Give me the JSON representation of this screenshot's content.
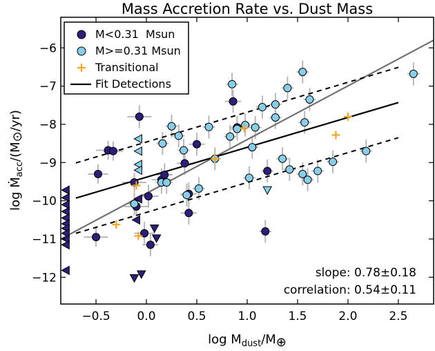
{
  "chart_data": {
    "type": "scatter",
    "title": "Mass Accretion Rate vs. Dust Mass",
    "xlabel": "log M",
    "xlabel_sub": "dust",
    "xlabel_tail": "/M",
    "xlabel_symbol": "⊕",
    "ylabel": "log Ṁ",
    "ylabel_sub": "acc",
    "ylabel_tail": "/(M",
    "ylabel_symbol": "⊙",
    "ylabel_end": "/yr)",
    "xlim": [
      -0.85,
      2.85
    ],
    "ylim": [
      -12.7,
      -5.2
    ],
    "xticks": [
      -0.5,
      0.0,
      0.5,
      1.0,
      1.5,
      2.0,
      2.5
    ],
    "xtick_labels": [
      "−0.5",
      "0.0",
      "0.5",
      "1.0",
      "1.5",
      "2.0",
      "2.5"
    ],
    "yticks": [
      -12,
      -11,
      -10,
      -9,
      -8,
      -7,
      -6
    ],
    "ytick_labels": [
      "−12",
      "−11",
      "−10",
      "−9",
      "−8",
      "−7",
      "−6"
    ],
    "legend": {
      "position": "top-left",
      "entries": [
        {
          "label": "M<0.31  Msun",
          "marker": "circle",
          "color": "#2a1f7a"
        },
        {
          "label": "M>=0.31 Msun",
          "marker": "circle",
          "color": "#87ceeb"
        },
        {
          "label": "Transitional",
          "marker": "plus",
          "color": "#f5a623"
        },
        {
          "label": "Fit Detections",
          "marker": "line",
          "color": "#000000"
        }
      ]
    },
    "annotations": [
      {
        "text": "slope: 0.78±0.18"
      },
      {
        "text": "correlation: 0.54±0.11"
      }
    ],
    "colors": {
      "low_mass": "#2a1f7a",
      "high_mass": "#87ceeb",
      "transitional": "#f5a623",
      "fit": "#000000",
      "one_to_one": "#707070",
      "errorbar": "#b8b8b8"
    },
    "fit_line": {
      "x": [
        -0.7,
        2.5
      ],
      "y": [
        -9.93,
        -7.43
      ]
    },
    "fit_upper": {
      "x": [
        -0.7,
        2.5
      ],
      "y": [
        -9.01,
        -6.51
      ]
    },
    "fit_lower": {
      "x": [
        -0.7,
        2.5
      ],
      "y": [
        -10.85,
        -8.35
      ]
    },
    "reference_line": {
      "x": [
        -0.85,
        2.85
      ],
      "y": [
        -11.0,
        -5.8
      ]
    },
    "series": [
      {
        "name": "M<0.31  Msun",
        "marker": "circle",
        "points": [
          [
            -0.5,
            -10.95
          ],
          [
            -0.48,
            -9.3
          ],
          [
            -0.38,
            -8.68
          ],
          [
            -0.33,
            -8.7
          ],
          [
            -0.12,
            -9.52
          ],
          [
            -0.1,
            -10.15
          ],
          [
            -0.07,
            -7.8
          ],
          [
            -0.02,
            -10.85
          ],
          [
            0.02,
            -9.88
          ],
          [
            0.04,
            -11.15
          ],
          [
            0.15,
            -9.45
          ],
          [
            0.18,
            -9.32
          ],
          [
            0.38,
            -9.02
          ],
          [
            0.42,
            -9.82
          ],
          [
            0.42,
            -10.32
          ],
          [
            0.5,
            -8.52
          ],
          [
            0.86,
            -7.4
          ],
          [
            0.9,
            -8.08
          ],
          [
            1.2,
            -9.22
          ],
          [
            1.18,
            -10.8
          ]
        ],
        "xerr": [
          0.12,
          0.1,
          0.12,
          0.1,
          0.12,
          0.12,
          0.12,
          0.1,
          0.1,
          0.08,
          0.1,
          0.08,
          0.08,
          0.08,
          0.08,
          0.08,
          0.08,
          0.08,
          0.06,
          0.06
        ],
        "yerr": [
          0.25,
          0.25,
          0.25,
          0.25,
          0.25,
          0.25,
          0.3,
          0.3,
          0.3,
          0.3,
          0.3,
          0.3,
          0.3,
          0.3,
          0.3,
          0.3,
          0.3,
          0.3,
          0.3,
          0.3
        ]
      },
      {
        "name": "M>=0.31 Msun",
        "marker": "circle",
        "points": [
          [
            -0.12,
            -10.08
          ],
          [
            0.16,
            -8.5
          ],
          [
            0.15,
            -9.52
          ],
          [
            0.2,
            -9.52
          ],
          [
            0.25,
            -8.05
          ],
          [
            0.32,
            -8.3
          ],
          [
            0.37,
            -8.68
          ],
          [
            0.4,
            -9.85
          ],
          [
            0.52,
            -9.68
          ],
          [
            0.62,
            -8.07
          ],
          [
            0.68,
            -8.9
          ],
          [
            0.85,
            -6.95
          ],
          [
            0.83,
            -8.32
          ],
          [
            0.9,
            -8.12
          ],
          [
            0.98,
            -8.02
          ],
          [
            1.02,
            -9.4
          ],
          [
            1.05,
            -8.6
          ],
          [
            1.08,
            -8.08
          ],
          [
            1.15,
            -7.55
          ],
          [
            1.28,
            -7.48
          ],
          [
            1.28,
            -7.82
          ],
          [
            1.35,
            -8.9
          ],
          [
            1.4,
            -7.05
          ],
          [
            1.42,
            -9.18
          ],
          [
            1.55,
            -9.3
          ],
          [
            1.55,
            -6.63
          ],
          [
            1.57,
            -7.95
          ],
          [
            1.6,
            -9.45
          ],
          [
            1.62,
            -7.35
          ],
          [
            1.7,
            -9.22
          ],
          [
            1.85,
            -8.98
          ],
          [
            2.18,
            -8.7
          ],
          [
            2.65,
            -6.68
          ]
        ],
        "xerr": [
          0.06,
          0.06,
          0.06,
          0.06,
          0.06,
          0.06,
          0.06,
          0.06,
          0.06,
          0.06,
          0.06,
          0.06,
          0.06,
          0.06,
          0.06,
          0.06,
          0.06,
          0.06,
          0.06,
          0.06,
          0.06,
          0.06,
          0.06,
          0.06,
          0.06,
          0.06,
          0.06,
          0.06,
          0.06,
          0.06,
          0.06,
          0.06,
          0.06
        ],
        "yerr": [
          0.3,
          0.3,
          0.3,
          0.3,
          0.3,
          0.3,
          0.3,
          0.3,
          0.3,
          0.3,
          0.3,
          0.3,
          0.3,
          0.3,
          0.3,
          0.3,
          0.3,
          0.3,
          0.3,
          0.3,
          0.3,
          0.3,
          0.3,
          0.3,
          0.3,
          0.3,
          0.3,
          0.3,
          0.3,
          0.3,
          0.3,
          0.3,
          0.3
        ]
      },
      {
        "name": "Transitional",
        "marker": "plus",
        "points": [
          [
            -0.3,
            -10.62
          ],
          [
            -0.1,
            -9.6
          ],
          [
            -0.08,
            -10.92
          ],
          [
            0.68,
            -8.9
          ],
          [
            0.97,
            -8.1
          ],
          [
            1.88,
            -8.28
          ],
          [
            2.0,
            -7.8
          ]
        ]
      },
      {
        "name": "low-mass upper limits (x)",
        "marker": "triangle-left",
        "fill_key": "low_mass",
        "points": [
          [
            -0.8,
            -9.72
          ],
          [
            -0.8,
            -9.92
          ],
          [
            -0.8,
            -10.1
          ],
          [
            -0.8,
            -10.28
          ],
          [
            -0.8,
            -10.45
          ],
          [
            -0.8,
            -10.6
          ],
          [
            -0.8,
            -10.72
          ],
          [
            -0.8,
            -10.85
          ],
          [
            -0.8,
            -11.0
          ],
          [
            -0.8,
            -11.15
          ],
          [
            -0.8,
            -11.82
          ],
          [
            -0.08,
            -9.95
          ],
          [
            -0.1,
            -10.5
          ]
        ]
      },
      {
        "name": "high-mass upper limits (x)",
        "marker": "triangle-left",
        "fill_key": "high_mass",
        "points": [
          [
            -0.08,
            -8.38
          ],
          [
            -0.08,
            -8.7
          ],
          [
            -0.08,
            -9.05
          ],
          [
            -0.08,
            -9.2
          ]
        ]
      },
      {
        "name": "low-mass upper limits (y)",
        "marker": "triangle-down",
        "fill_key": "low_mass",
        "points": [
          [
            -0.05,
            -11.92
          ],
          [
            -0.12,
            -12.02
          ],
          [
            0.08,
            -10.72
          ],
          [
            0.1,
            -10.98
          ]
        ]
      },
      {
        "name": "high-mass upper limits (y)",
        "marker": "triangle-down",
        "fill_key": "high_mass",
        "points": [
          [
            1.2,
            -9.72
          ]
        ]
      }
    ]
  }
}
